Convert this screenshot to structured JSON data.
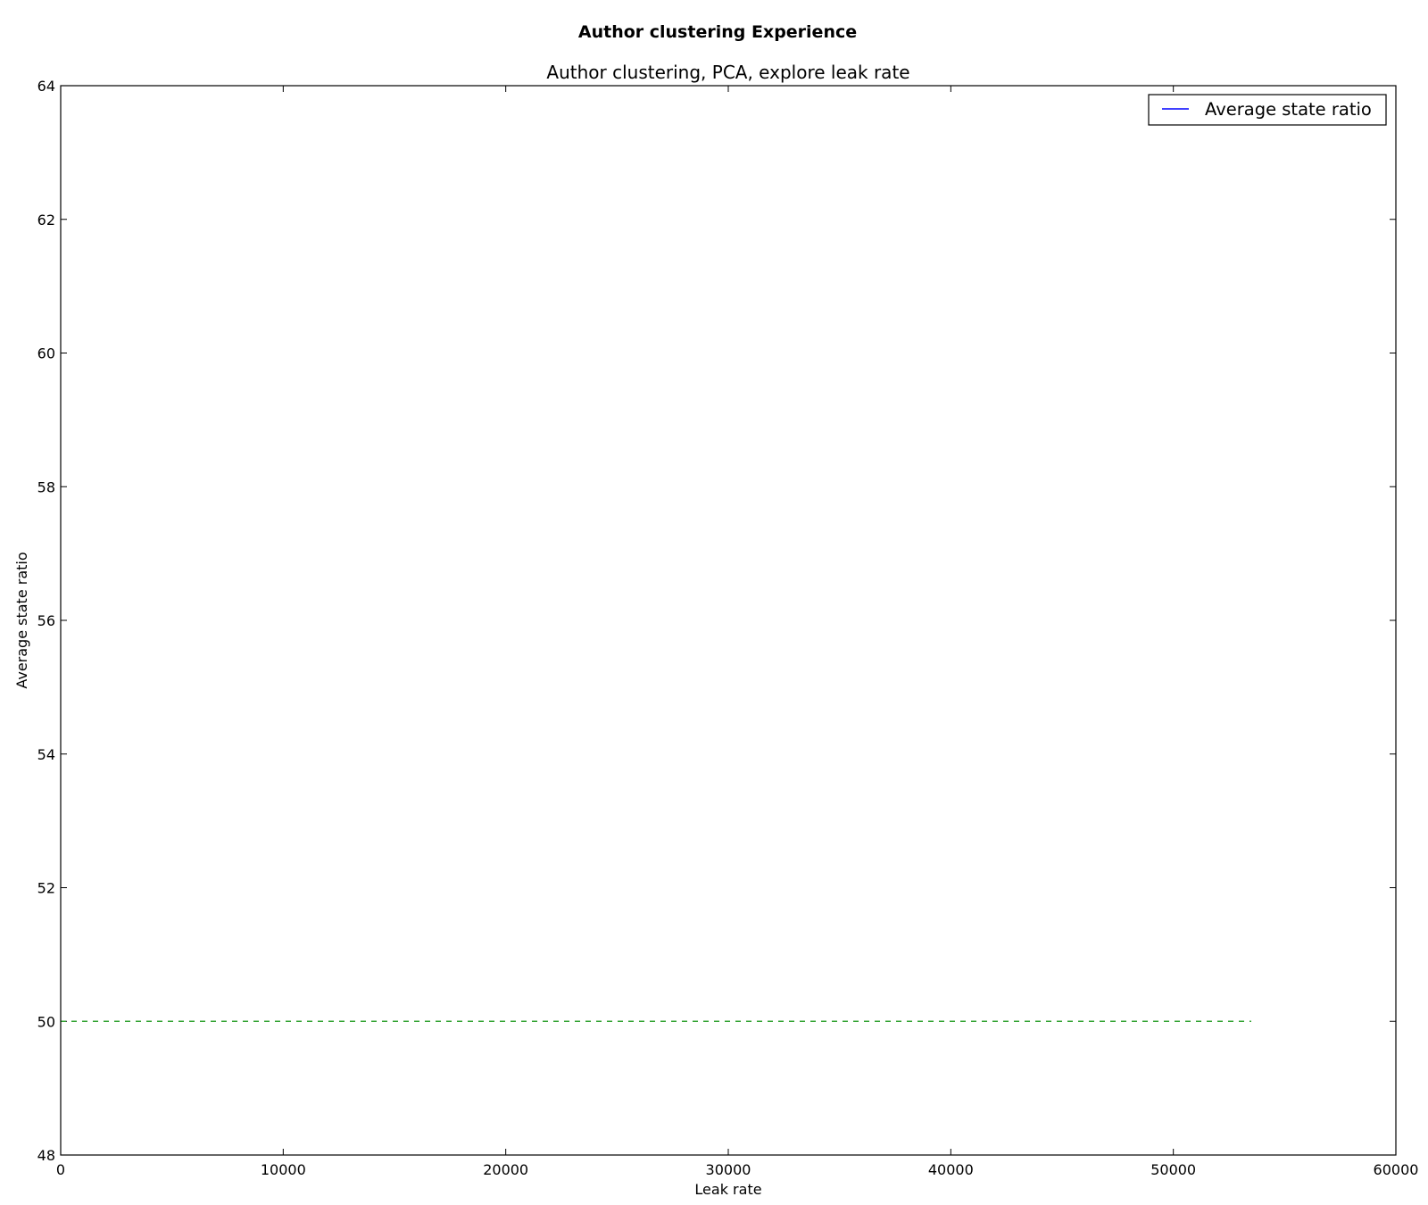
{
  "chart_data": {
    "type": "line",
    "suptitle": "Author clustering Experience",
    "title": "Author clustering, PCA, explore leak rate",
    "xlabel": "Leak rate",
    "ylabel": "Average state ratio",
    "xlim": [
      0,
      60000
    ],
    "ylim": [
      48,
      64
    ],
    "x_ticks": [
      "0",
      "10000",
      "20000",
      "30000",
      "40000",
      "50000",
      "60000"
    ],
    "y_ticks": [
      "48",
      "50",
      "52",
      "54",
      "56",
      "58",
      "60",
      "62",
      "64"
    ],
    "grid": false,
    "legend_position": "top-right",
    "series": [
      {
        "name": "Average state ratio",
        "color": "#0000ff",
        "style": "solid",
        "x": [],
        "y": []
      }
    ],
    "reference_lines": [
      {
        "color": "#2ca02c",
        "style": "dashed",
        "x": [
          0,
          53500
        ],
        "y": [
          50,
          50
        ]
      }
    ]
  }
}
